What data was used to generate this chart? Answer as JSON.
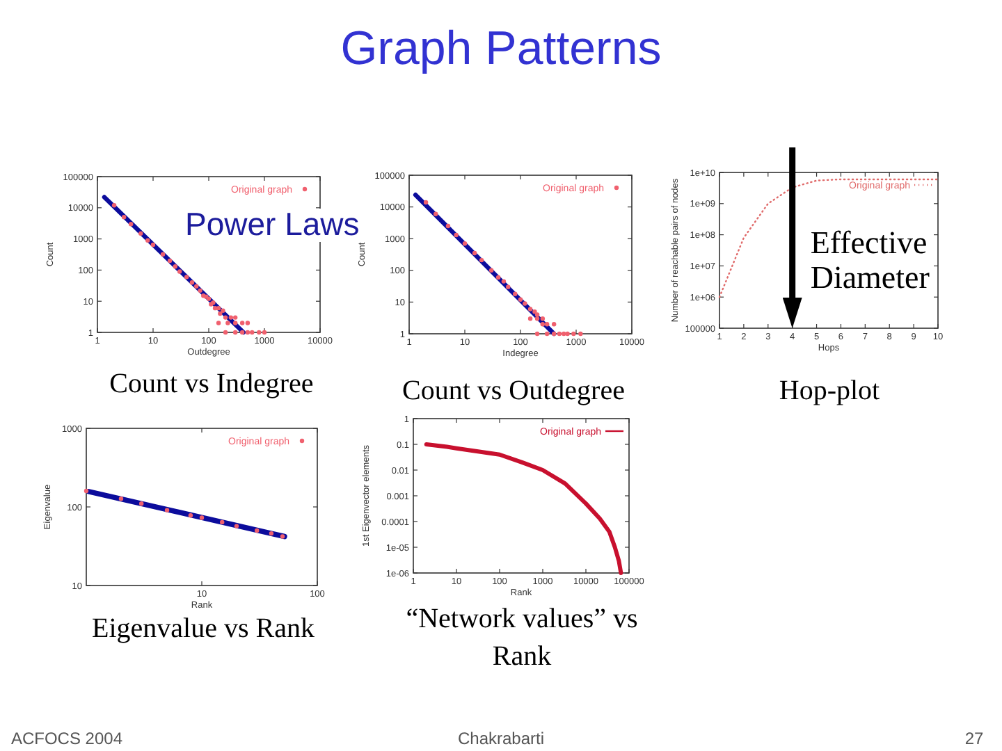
{
  "chart_data": [
    {
      "type": "other",
      "title": "Graph Patterns",
      "annotations": [
        "ACFOCS 2004",
        "Chakrabarti",
        "27"
      ]
    },
    {
      "type": "scatter",
      "title": "Count vs Indegree",
      "xlabel": "Outdegree",
      "ylabel": "Count",
      "log": "xy",
      "xlim": [
        1,
        10000
      ],
      "ylim": [
        1,
        100000
      ],
      "xticks": [
        1,
        10,
        100,
        1000,
        10000
      ],
      "yticks": [
        1,
        10,
        100,
        1000,
        10000,
        100000
      ],
      "legend": "top right",
      "annotations": [
        "Power Laws"
      ],
      "series": [
        {
          "type": "scatter",
          "name": "Original graph",
          "color": "#f0606e",
          "x": [
            2,
            3,
            4,
            6,
            8,
            10,
            15,
            20,
            25,
            30,
            40,
            50,
            60,
            70,
            80,
            90,
            100,
            110,
            120,
            130,
            150,
            160,
            180,
            200,
            250,
            300,
            150,
            220,
            300,
            400,
            500,
            200,
            300,
            400,
            500,
            600,
            800,
            1000
          ],
          "values": [
            12000,
            5000,
            3000,
            1500,
            900,
            650,
            320,
            200,
            130,
            90,
            60,
            40,
            30,
            22,
            15,
            14,
            12,
            8,
            9,
            6,
            6,
            4,
            5,
            3,
            3,
            3,
            2,
            2,
            2,
            2,
            2,
            1,
            1,
            1,
            1,
            1,
            1,
            1
          ]
        },
        {
          "type": "line",
          "color": "#0c0c9c",
          "x": [
            1.33,
            420
          ],
          "values": [
            22000,
            1
          ]
        }
      ]
    },
    {
      "type": "scatter",
      "title": "Count vs Outdegree",
      "xlabel": "Indegree",
      "ylabel": "Count",
      "log": "xy",
      "xlim": [
        1,
        10000
      ],
      "ylim": [
        1,
        100000
      ],
      "xticks": [
        1,
        10,
        100,
        1000,
        10000
      ],
      "yticks": [
        1,
        10,
        100,
        1000,
        10000,
        100000
      ],
      "legend": "top right",
      "series": [
        {
          "type": "scatter",
          "name": "Original graph",
          "color": "#f0606e",
          "x": [
            2,
            3,
            5,
            7,
            10,
            15,
            20,
            30,
            40,
            50,
            60,
            80,
            100,
            120,
            150,
            180,
            200,
            250,
            150,
            200,
            250,
            300,
            400,
            200,
            300,
            400,
            500,
            600,
            700,
            900,
            1200
          ],
          "values": [
            14000,
            6000,
            2500,
            1300,
            700,
            350,
            210,
            100,
            60,
            45,
            30,
            18,
            12,
            9,
            6,
            5,
            4,
            3,
            3,
            3,
            2,
            2,
            2,
            1,
            1,
            1,
            1,
            1,
            1,
            1,
            1
          ]
        },
        {
          "type": "line",
          "color": "#0c0c9c",
          "x": [
            1.3,
            400
          ],
          "values": [
            24000,
            1
          ]
        }
      ]
    },
    {
      "type": "line",
      "title": "Hop-plot",
      "xlabel": "Hops",
      "ylabel": "Number of reachable pairs of nodes",
      "log": "y",
      "xlim": [
        1,
        10
      ],
      "ylim": [
        100000,
        10000000000
      ],
      "xticks": [
        1,
        2,
        3,
        4,
        5,
        6,
        7,
        8,
        9,
        10
      ],
      "yticks": [
        100000,
        {
          "value": 1000000,
          "label": "1e+06"
        },
        {
          "value": 10000000,
          "label": "1e+07"
        },
        {
          "value": 100000000,
          "label": "1e+08"
        },
        {
          "value": 1000000000,
          "label": "1e+09"
        },
        {
          "value": 10000000000,
          "label": "1e+10"
        }
      ],
      "legend": "top right",
      "line_style": "dotted",
      "ref_lines": [
        {
          "axis": "x",
          "value": 4,
          "label": "Effective Diameter",
          "color": "#000000"
        }
      ],
      "series": [
        {
          "name": "Original graph",
          "color": "#e06a6a",
          "x": [
            1,
            2,
            3,
            4,
            5,
            6,
            7,
            8,
            9,
            10
          ],
          "values": [
            1000000,
            80000000,
            1000000000,
            3300000000,
            5500000000,
            6000000000,
            6000000000,
            6000000000,
            6000000000,
            6000000000
          ]
        }
      ]
    },
    {
      "type": "scatter",
      "title": "Eigenvalue vs Rank",
      "xlabel": "Rank",
      "ylabel": "Eigenvalue",
      "log": "xy",
      "xlim": [
        1,
        100
      ],
      "ylim": [
        10,
        1000
      ],
      "xticks": [
        10,
        100
      ],
      "yticks": [
        10,
        100,
        1000
      ],
      "legend": "top right",
      "series": [
        {
          "type": "scatter",
          "name": "Original graph",
          "color": "#f0606e",
          "x": [
            1,
            2,
            3,
            5,
            8,
            10,
            15,
            20,
            30,
            40,
            50
          ],
          "values": [
            160,
            127,
            110,
            91,
            78,
            73,
            64,
            57,
            50,
            46,
            42
          ]
        },
        {
          "type": "line",
          "color": "#0c0c9c",
          "x": [
            1.05,
            52
          ],
          "values": [
            157,
            42
          ]
        }
      ]
    },
    {
      "type": "line",
      "title": "“Network values” vs Rank",
      "xlabel": "Rank",
      "ylabel": "1st Eigenvector elements",
      "log": "xy",
      "xlim": [
        1,
        100000
      ],
      "ylim": [
        1e-06,
        1
      ],
      "xticks": [
        1,
        10,
        100,
        1000,
        10000,
        100000
      ],
      "yticks": [
        1,
        0.1,
        0.01,
        0.001,
        0.0001,
        {
          "value": 1e-05,
          "label": "1e-05"
        },
        {
          "value": 1e-06,
          "label": "1e-06"
        }
      ],
      "legend": "top right",
      "series": [
        {
          "name": "Original graph",
          "color": "#c8102e",
          "x": [
            2,
            6,
            10,
            100,
            330,
            1000,
            3300,
            10000,
            21000,
            35000,
            47000,
            58000,
            65000
          ],
          "values": [
            0.1,
            0.08,
            0.07,
            0.04,
            0.02,
            0.01,
            0.003,
            0.0005,
            0.00013,
            4e-05,
            1e-05,
            3e-06,
            1e-06
          ]
        }
      ]
    }
  ]
}
